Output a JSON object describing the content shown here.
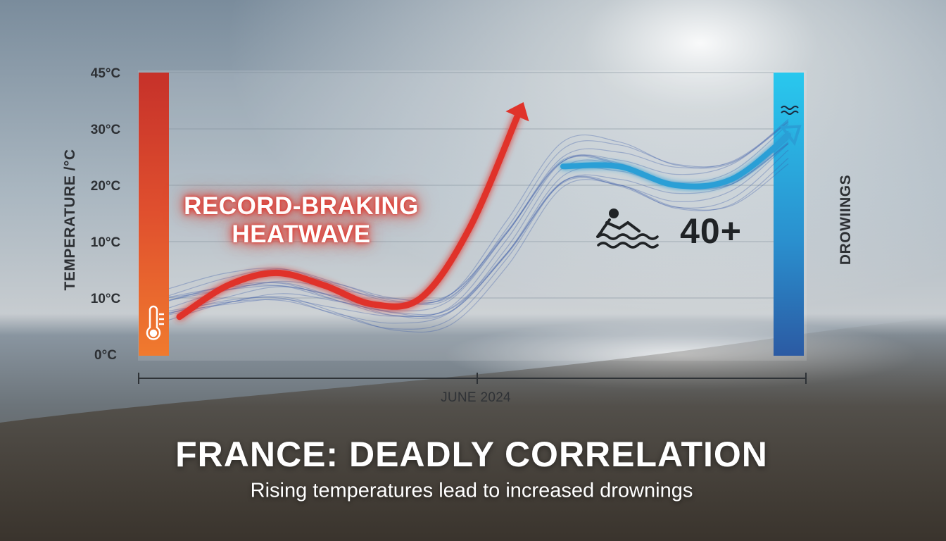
{
  "chart_data": {
    "type": "line",
    "title": "FRANCE: DEADLY CORRELATION",
    "subtitle": "Rising temperatures lead to increased drownings",
    "ylabel": "TEMPERATURE /°C",
    "y2label": "DROWIINGS",
    "xlabel": "JUNE 2024",
    "y_tick_labels": [
      "0°C",
      "10°C",
      "10°C",
      "20°C",
      "30°C",
      "45°C"
    ],
    "grid": true,
    "series": [
      {
        "values": [
          6,
          11,
          13,
          11,
          8,
          9,
          20,
          38
        ]
      },
      {
        "values": [
          8,
          10,
          11,
          9,
          7,
          8,
          18,
          30,
          30,
          27,
          28,
          35
        ]
      }
    ],
    "annotation": [
      "RECORD-BRAKING",
      "HEATWAVE"
    ],
    "stat": {
      "value": "40+",
      "icon": "swimmer-icon"
    },
    "colors": {
      "heat": "#e0332a",
      "cool": "#2a9fd6",
      "ensemble": "#3f5fa8"
    }
  }
}
